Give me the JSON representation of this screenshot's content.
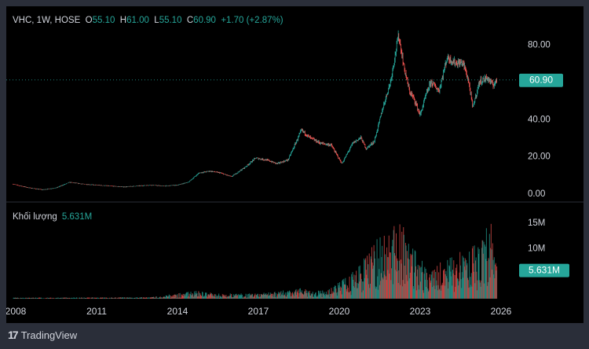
{
  "header": {
    "symbol": "VHC, 1W, HOSE",
    "open_key": "O",
    "open": "55.10",
    "high_key": "H",
    "high": "61.00",
    "low_key": "L",
    "low": "55.10",
    "close_key": "C",
    "close": "60.90",
    "change": "+1.70 (+2.87%)"
  },
  "volume_panel": {
    "label": "Khối lượng",
    "value": "5.631M"
  },
  "footer": {
    "brand": "TradingView",
    "logo_icon": "tradingview-logo-icon"
  },
  "colors": {
    "up": "#26a69a",
    "down": "#ef5350",
    "background": "#000000",
    "frame": "#2a2e39",
    "text": "#d1d4dc"
  },
  "chart_data": [
    {
      "type": "candlestick",
      "title": "VHC, 1W, HOSE",
      "x_ticks": [
        "2008",
        "2011",
        "2014",
        "2017",
        "2020",
        "2023",
        "2026"
      ],
      "y_ticks": [
        "0.00",
        "20.00",
        "40.00",
        "60.00",
        "80.00"
      ],
      "ylim": [
        -5,
        92
      ],
      "last_price": 60.9,
      "last_price_label": "60.90",
      "grid": false,
      "price_path": [
        [
          2007.9,
          5
        ],
        [
          2008.5,
          3
        ],
        [
          2009.0,
          2
        ],
        [
          2009.5,
          3
        ],
        [
          2010.0,
          6
        ],
        [
          2010.5,
          5
        ],
        [
          2011.0,
          4.5
        ],
        [
          2011.5,
          4
        ],
        [
          2012.0,
          3.5
        ],
        [
          2012.5,
          4
        ],
        [
          2013.0,
          4.5
        ],
        [
          2013.5,
          4
        ],
        [
          2014.0,
          4.5
        ],
        [
          2014.4,
          6
        ],
        [
          2014.8,
          11
        ],
        [
          2015.2,
          12
        ],
        [
          2015.6,
          11
        ],
        [
          2016.0,
          9
        ],
        [
          2016.5,
          14
        ],
        [
          2016.9,
          19
        ],
        [
          2017.3,
          18
        ],
        [
          2017.7,
          16
        ],
        [
          2018.1,
          18
        ],
        [
          2018.6,
          34
        ],
        [
          2018.9,
          30
        ],
        [
          2019.3,
          27
        ],
        [
          2019.7,
          26
        ],
        [
          2020.1,
          16
        ],
        [
          2020.5,
          27
        ],
        [
          2020.8,
          30
        ],
        [
          2021.0,
          24
        ],
        [
          2021.3,
          28
        ],
        [
          2021.6,
          45
        ],
        [
          2021.9,
          60
        ],
        [
          2022.2,
          85
        ],
        [
          2022.4,
          68
        ],
        [
          2022.6,
          55
        ],
        [
          2022.8,
          50
        ],
        [
          2023.0,
          42
        ],
        [
          2023.2,
          52
        ],
        [
          2023.4,
          60
        ],
        [
          2023.7,
          55
        ],
        [
          2024.0,
          73
        ],
        [
          2024.3,
          70
        ],
        [
          2024.6,
          70
        ],
        [
          2024.8,
          60
        ],
        [
          2024.95,
          46
        ],
        [
          2025.2,
          60
        ],
        [
          2025.5,
          62
        ],
        [
          2025.7,
          58
        ],
        [
          2025.85,
          60.9
        ]
      ]
    },
    {
      "type": "bar",
      "title": "Khối lượng",
      "y_ticks": [
        "10M",
        "15M"
      ],
      "ylim": [
        0,
        17
      ],
      "last_value": 5.631,
      "last_value_label": "5.631M",
      "volume_envelope": [
        [
          2007.9,
          0.2
        ],
        [
          2013.0,
          0.3
        ],
        [
          2014.7,
          1.5
        ],
        [
          2015.5,
          1.0
        ],
        [
          2017.0,
          1.0
        ],
        [
          2018.5,
          2.0
        ],
        [
          2019.5,
          1.5
        ],
        [
          2020.5,
          5.0
        ],
        [
          2021.5,
          12.0
        ],
        [
          2022.3,
          15.0
        ],
        [
          2022.8,
          10.0
        ],
        [
          2023.3,
          5.0
        ],
        [
          2024.0,
          8.0
        ],
        [
          2025.0,
          10.0
        ],
        [
          2025.7,
          16.0
        ],
        [
          2025.85,
          5.631
        ]
      ]
    }
  ]
}
